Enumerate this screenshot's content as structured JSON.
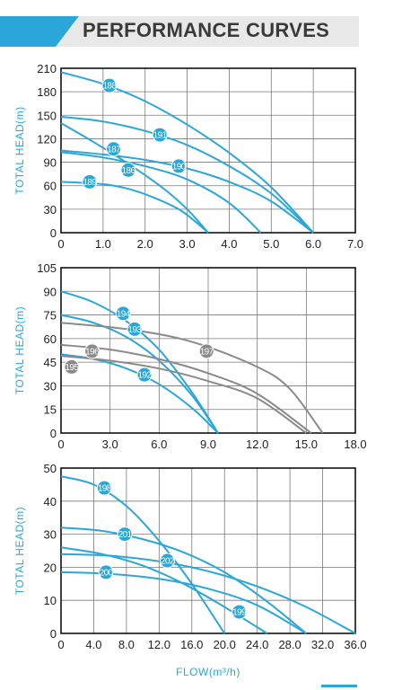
{
  "header": {
    "title": "PERFORMANCE CURVES"
  },
  "colors": {
    "blue": "#2aa7d8",
    "grey": "#8a8a8a",
    "banner_accent": "#2aa7d8",
    "banner_bg": "#e8e8e8"
  },
  "chart_data": [
    {
      "type": "line",
      "ylabel": "TOTAL HEAD(m)",
      "xlim": [
        0,
        7
      ],
      "ylim": [
        0,
        210
      ],
      "xticks": [
        "0",
        "1.0",
        "2.0",
        "3.0",
        "4.0",
        "5.0",
        "6.0",
        "7.0"
      ],
      "yticks": [
        "0",
        "30",
        "60",
        "90",
        "120",
        "150",
        "180",
        "210"
      ],
      "series": [
        {
          "name": "188",
          "color": "blue",
          "x": [
            0,
            1,
            2,
            3,
            4,
            5,
            6
          ],
          "y": [
            205,
            190,
            168,
            138,
            102,
            58,
            0
          ],
          "label_at": [
            1.15,
            188
          ]
        },
        {
          "name": "191",
          "color": "blue",
          "x": [
            0,
            1,
            2,
            3,
            4,
            5,
            6
          ],
          "y": [
            148,
            142,
            130,
            112,
            85,
            50,
            0
          ],
          "label_at": [
            2.35,
            125
          ]
        },
        {
          "name": "187",
          "color": "blue",
          "x": [
            0,
            0.8,
            1.6,
            2.4,
            3.0,
            3.5
          ],
          "y": [
            140,
            115,
            88,
            58,
            30,
            0
          ],
          "label_at": [
            1.25,
            107
          ]
        },
        {
          "name": "190",
          "color": "blue",
          "x": [
            0,
            1,
            2,
            3,
            4,
            5,
            6
          ],
          "y": [
            105,
            100,
            93,
            82,
            65,
            40,
            0
          ],
          "label_at": [
            2.8,
            85
          ]
        },
        {
          "name": "186",
          "color": "blue",
          "x": [
            0,
            1,
            2,
            3,
            4,
            4.75
          ],
          "y": [
            103,
            96,
            85,
            68,
            38,
            0
          ],
          "label_at": [
            1.6,
            80
          ]
        },
        {
          "name": "189",
          "color": "blue",
          "x": [
            0,
            1,
            1.6,
            2.2,
            2.8,
            3.2,
            3.5
          ],
          "y": [
            65,
            62,
            56,
            45,
            30,
            14,
            0
          ],
          "label_at": [
            0.68,
            65
          ]
        }
      ]
    },
    {
      "type": "line",
      "ylabel": "TOTAL HEAD(m)",
      "xlim": [
        0,
        18
      ],
      "ylim": [
        0,
        105
      ],
      "xticks": [
        "0",
        "3.0",
        "6.0",
        "9.0",
        "12.0",
        "15.0",
        "18.0"
      ],
      "yticks": [
        "0",
        "15",
        "30",
        "45",
        "60",
        "75",
        "90",
        "105"
      ],
      "series": [
        {
          "name": "194",
          "color": "blue",
          "x": [
            0,
            2,
            4,
            6,
            8,
            9.6
          ],
          "y": [
            90,
            83,
            71,
            53,
            26,
            0
          ],
          "label_at": [
            3.8,
            76
          ]
        },
        {
          "name": "193",
          "color": "blue",
          "x": [
            0,
            2,
            4,
            6,
            8,
            9.6
          ],
          "y": [
            75,
            70,
            61,
            46,
            24,
            0
          ],
          "label_at": [
            4.5,
            66
          ]
        },
        {
          "name": "192",
          "color": "blue",
          "x": [
            0,
            2,
            4,
            6,
            8,
            9.6
          ],
          "y": [
            50,
            47,
            41,
            31,
            16,
            0
          ],
          "label_at": [
            5.1,
            37
          ]
        },
        {
          "name": "197",
          "color": "grey",
          "x": [
            0,
            4,
            8,
            12,
            14,
            16
          ],
          "y": [
            70,
            66,
            58,
            42,
            28,
            0
          ],
          "label_at": [
            8.9,
            52
          ]
        },
        {
          "name": "196",
          "color": "grey",
          "x": [
            0,
            3,
            6,
            9,
            12,
            15.3
          ],
          "y": [
            56,
            53,
            47,
            38,
            25,
            0
          ],
          "label_at": [
            1.9,
            52
          ]
        },
        {
          "name": "195",
          "color": "grey",
          "x": [
            0,
            3,
            6,
            9,
            12,
            15
          ],
          "y": [
            49,
            46,
            41,
            33,
            22,
            0
          ],
          "label_at": [
            0.65,
            42
          ]
        }
      ]
    },
    {
      "type": "line",
      "ylabel": "TOTAL HEAD(m)",
      "xlabel": "FLOW(m³/h)",
      "xlim": [
        0,
        36
      ],
      "ylim": [
        0,
        50
      ],
      "xticks": [
        "0",
        "4.0",
        "8.0",
        "12.0",
        "16.0",
        "20.0",
        "24.0",
        "28.0",
        "32.0",
        "36.0"
      ],
      "yticks": [
        "0",
        "10",
        "20",
        "30",
        "40",
        "50"
      ],
      "series": [
        {
          "name": "198",
          "color": "blue",
          "x": [
            0,
            4,
            8,
            12,
            16,
            20
          ],
          "y": [
            47.5,
            45,
            38.5,
            28,
            15,
            0
          ],
          "label_at": [
            5.3,
            44
          ]
        },
        {
          "name": "201",
          "color": "blue",
          "x": [
            0,
            5,
            10,
            15,
            20,
            25,
            30
          ],
          "y": [
            32,
            31,
            28.5,
            24.5,
            18.5,
            10,
            0
          ],
          "label_at": [
            7.8,
            30
          ]
        },
        {
          "name": "202",
          "color": "blue",
          "x": [
            0,
            6,
            12,
            18,
            24,
            30,
            36
          ],
          "y": [
            24,
            23.5,
            21.8,
            18.8,
            14.2,
            8,
            0
          ],
          "label_at": [
            13.0,
            22
          ]
        },
        {
          "name": "200",
          "color": "blue",
          "x": [
            0,
            6,
            12,
            18,
            24,
            30
          ],
          "y": [
            18.5,
            18,
            16.5,
            13.5,
            8.5,
            0
          ],
          "label_at": [
            5.5,
            18.5
          ]
        },
        {
          "name": "199",
          "color": "blue",
          "x": [
            0,
            5,
            10,
            15,
            20,
            25.2
          ],
          "y": [
            26,
            24,
            20.5,
            15,
            8,
            0
          ],
          "label_at": [
            21.8,
            6.5
          ]
        }
      ]
    }
  ]
}
